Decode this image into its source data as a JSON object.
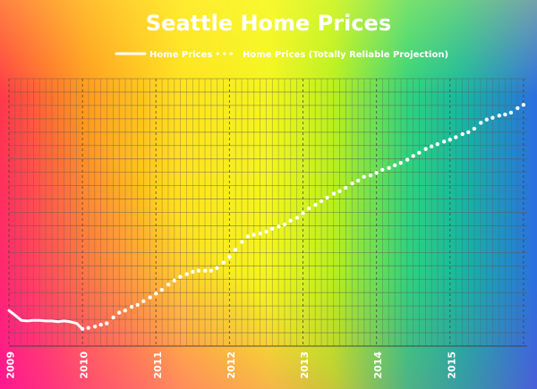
{
  "chart_data": {
    "type": "line",
    "title": "Seattle Home Prices",
    "xlabel": "",
    "ylabel": "",
    "x_tick_labels": [
      "2009",
      "2010",
      "2011",
      "2012",
      "2013",
      "2014",
      "2015"
    ],
    "xlim": [
      2009,
      2016.05
    ],
    "ylim": [
      0,
      1
    ],
    "grid": true,
    "legend_position": "top-center",
    "series": [
      {
        "name": "Home Prices",
        "style": "solid",
        "color": "#ffffff",
        "x": [
          2009.0,
          2009.08,
          2009.17,
          2009.25,
          2009.33,
          2009.42,
          2009.5,
          2009.58,
          2009.67,
          2009.75,
          2009.83,
          2009.92,
          2010.0
        ],
        "y": [
          0.133,
          0.116,
          0.096,
          0.094,
          0.096,
          0.096,
          0.094,
          0.094,
          0.091,
          0.094,
          0.091,
          0.085,
          0.064
        ]
      },
      {
        "name": "Home Prices (Totally Reliable Projection)",
        "style": "dotted",
        "color": "#ffffff",
        "x": [
          2010.0,
          2010.08,
          2010.17,
          2010.25,
          2010.33,
          2010.42,
          2010.5,
          2010.58,
          2010.67,
          2010.75,
          2010.83,
          2010.92,
          2011.0,
          2011.08,
          2011.17,
          2011.25,
          2011.33,
          2011.42,
          2011.5,
          2011.58,
          2011.67,
          2011.75,
          2011.83,
          2011.92,
          2012.0,
          2012.08,
          2012.17,
          2012.25,
          2012.33,
          2012.42,
          2012.5,
          2012.58,
          2012.67,
          2012.75,
          2012.83,
          2012.92,
          2013.0,
          2013.08,
          2013.17,
          2013.25,
          2013.33,
          2013.42,
          2013.5,
          2013.58,
          2013.67,
          2013.75,
          2013.83,
          2013.92,
          2014.0,
          2014.08,
          2014.17,
          2014.25,
          2014.33,
          2014.42,
          2014.5,
          2014.58,
          2014.67,
          2014.75,
          2014.83,
          2014.92,
          2015.0,
          2015.08,
          2015.17,
          2015.25,
          2015.33,
          2015.42,
          2015.5,
          2015.58,
          2015.67,
          2015.75,
          2015.83,
          2015.92,
          2016.0
        ],
        "y": [
          0.064,
          0.068,
          0.073,
          0.08,
          0.085,
          0.107,
          0.125,
          0.133,
          0.147,
          0.154,
          0.168,
          0.182,
          0.196,
          0.21,
          0.23,
          0.245,
          0.259,
          0.269,
          0.278,
          0.282,
          0.282,
          0.282,
          0.292,
          0.312,
          0.334,
          0.36,
          0.39,
          0.41,
          0.416,
          0.421,
          0.428,
          0.439,
          0.447,
          0.455,
          0.469,
          0.48,
          0.497,
          0.515,
          0.528,
          0.542,
          0.555,
          0.57,
          0.579,
          0.592,
          0.608,
          0.619,
          0.633,
          0.638,
          0.648,
          0.659,
          0.666,
          0.676,
          0.685,
          0.697,
          0.711,
          0.723,
          0.737,
          0.747,
          0.755,
          0.765,
          0.772,
          0.781,
          0.793,
          0.8,
          0.813,
          0.835,
          0.847,
          0.854,
          0.862,
          0.866,
          0.873,
          0.89,
          0.902
        ]
      }
    ]
  }
}
